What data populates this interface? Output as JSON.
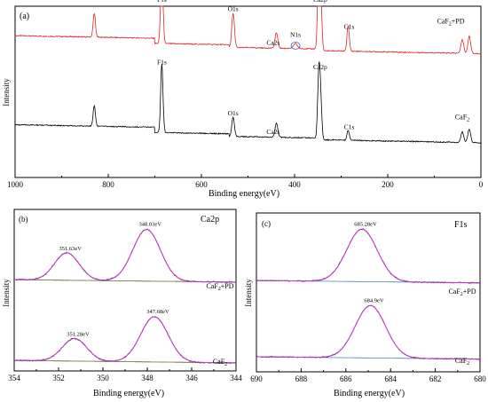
{
  "chart_data": [
    {
      "panel": "(a)",
      "type": "line",
      "xlabel": "Binding energy(eV)",
      "ylabel": "Intensity",
      "xlim": [
        1000,
        0
      ],
      "x_ticks": [
        "1000",
        "800",
        "600",
        "400",
        "200",
        "0"
      ],
      "x_tick_values": [
        1000,
        800,
        600,
        400,
        200,
        0
      ],
      "grid": false,
      "series": [
        {
          "name": "CaF2+PD",
          "label": "CaF",
          "label_sub": "2",
          "label_tail": "+PD",
          "color": "#e0262a",
          "offset": 0.72,
          "peaks": [
            {
              "x": 830,
              "h": 0.14,
              "w": 2.5
            },
            {
              "x": 685,
              "h": 0.48,
              "w": 2.5
            },
            {
              "x": 532,
              "h": 0.2,
              "w": 2.8
            },
            {
              "x": 439,
              "h": 0.09,
              "w": 3
            },
            {
              "x": 398,
              "h": 0.03,
              "w": 4
            },
            {
              "x": 348,
              "h": 0.5,
              "w": 2.5
            },
            {
              "x": 344,
              "h": 0.3,
              "w": 2.5
            },
            {
              "x": 285,
              "h": 0.15,
              "w": 2.5
            },
            {
              "x": 40,
              "h": 0.08,
              "w": 3
            },
            {
              "x": 25,
              "h": 0.1,
              "w": 3
            }
          ]
        },
        {
          "name": "CaF2",
          "label": "CaF",
          "label_sub": "2",
          "label_tail": "",
          "color": "#000000",
          "offset": 0.2,
          "peaks": [
            {
              "x": 830,
              "h": 0.12,
              "w": 2.5
            },
            {
              "x": 685,
              "h": 0.4,
              "w": 2.5
            },
            {
              "x": 532,
              "h": 0.11,
              "w": 2.8
            },
            {
              "x": 439,
              "h": 0.08,
              "w": 3
            },
            {
              "x": 348,
              "h": 0.38,
              "w": 2.5
            },
            {
              "x": 344,
              "h": 0.22,
              "w": 2.5
            },
            {
              "x": 285,
              "h": 0.06,
              "w": 2.5
            },
            {
              "x": 40,
              "h": 0.06,
              "w": 3
            },
            {
              "x": 25,
              "h": 0.08,
              "w": 3
            }
          ]
        }
      ],
      "annotations": [
        {
          "text": "F1s",
          "x": 685,
          "series": 0
        },
        {
          "text": "O1s",
          "x": 532,
          "series": 0
        },
        {
          "text": "Ca2s",
          "x": 446,
          "series": 0
        },
        {
          "text": "Ca2p",
          "x": 345,
          "series": 0
        },
        {
          "text": "C1s",
          "x": 283,
          "series": 0
        },
        {
          "text": "N1s",
          "x": 398,
          "series": 0
        },
        {
          "text": "F1s",
          "x": 685,
          "series": 1
        },
        {
          "text": "O1s",
          "x": 532,
          "series": 1
        },
        {
          "text": "Ca2s",
          "x": 446,
          "series": 1
        },
        {
          "text": "Ca2p",
          "x": 345,
          "series": 1
        },
        {
          "text": "C1s",
          "x": 283,
          "series": 1
        }
      ]
    },
    {
      "panel": "(b)",
      "title": "Ca2p",
      "type": "line",
      "xlabel": "Binding energy(eV)",
      "ylabel": "Intensity",
      "xlim": [
        354,
        344
      ],
      "x_ticks": [
        "354",
        "352",
        "350",
        "348",
        "346",
        "344"
      ],
      "x_tick_values": [
        354,
        352,
        350,
        348,
        346,
        344
      ],
      "grid": false,
      "series": [
        {
          "name": "CaF2+PD",
          "label": "CaF",
          "label_sub": "2",
          "label_tail": "+PD",
          "baseline": 0.55,
          "peaks": [
            {
              "x": 351.63,
              "h": 0.17,
              "w": 0.55,
              "label": "351.63eV"
            },
            {
              "x": 348.03,
              "h": 0.32,
              "w": 0.62,
              "label": "348.03eV"
            }
          ]
        },
        {
          "name": "CaF2",
          "label": "CaF",
          "label_sub": "2",
          "label_tail": "",
          "baseline": 0.05,
          "peaks": [
            {
              "x": 351.28,
              "h": 0.14,
              "w": 0.55,
              "label": "351.28eV"
            },
            {
              "x": 347.68,
              "h": 0.28,
              "w": 0.62,
              "label": "347.68eV"
            }
          ]
        }
      ],
      "colors": {
        "raw": "#222222",
        "fit": "#c33ccc",
        "component": "#8a7a3a",
        "background": "#4f7fd8"
      }
    },
    {
      "panel": "(c)",
      "title": "F1s",
      "type": "line",
      "xlabel": "Binding energy(eV)",
      "ylabel": "Intensity",
      "xlim": [
        690,
        680
      ],
      "x_ticks": [
        "690",
        "688",
        "686",
        "684",
        "682",
        "680"
      ],
      "x_tick_values": [
        690,
        688,
        686,
        684,
        682,
        680
      ],
      "grid": false,
      "series": [
        {
          "name": "CaF2+PD",
          "label": "CaF",
          "label_sub": "2",
          "label_tail": "+PD",
          "baseline": 0.56,
          "peaks": [
            {
              "x": 685.28,
              "h": 0.33,
              "w": 0.68,
              "label": "685.28eV"
            }
          ]
        },
        {
          "name": "CaF2",
          "label": "CaF",
          "label_sub": "2",
          "label_tail": "",
          "baseline": 0.08,
          "peaks": [
            {
              "x": 684.9,
              "h": 0.33,
              "w": 0.68,
              "label": "684.9eV"
            }
          ]
        }
      ],
      "colors": {
        "raw": "#222222",
        "fit": "#c33ccc",
        "component": "#8a7a3a",
        "background": "#4f7fd8"
      }
    }
  ]
}
